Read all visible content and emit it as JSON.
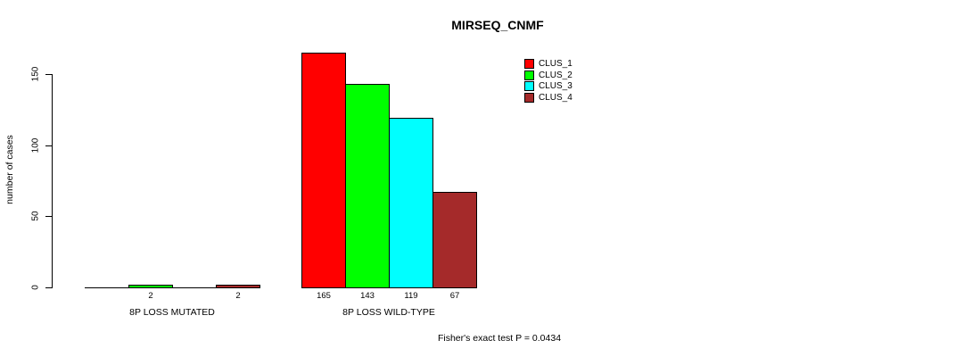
{
  "title": "MIRSEQ_CNMF",
  "annotation": "Fisher's exact test P = 0.0434",
  "y_axis": {
    "label": "number of cases",
    "tick_labels": [
      "0",
      "50",
      "100",
      "150"
    ]
  },
  "legend": {
    "items": [
      {
        "label": "CLUS_1",
        "color": "#FF0000"
      },
      {
        "label": "CLUS_2",
        "color": "#00FF00"
      },
      {
        "label": "CLUS_3",
        "color": "#00FFFF"
      },
      {
        "label": "CLUS_4",
        "color": "#A52A2A"
      }
    ]
  },
  "chart_data": {
    "type": "bar",
    "title": "MIRSEQ_CNMF",
    "ylabel": "number of cases",
    "xlabel": "",
    "ylim": [
      0,
      150
    ],
    "yticks": [
      0,
      50,
      100,
      150
    ],
    "grid": false,
    "legend_position": "top-right",
    "categories": [
      "8P LOSS MUTATED",
      "8P LOSS WILD-TYPE"
    ],
    "series": [
      {
        "name": "CLUS_1",
        "color": "#FF0000",
        "values": [
          0,
          165
        ]
      },
      {
        "name": "CLUS_2",
        "color": "#00FF00",
        "values": [
          2,
          143
        ]
      },
      {
        "name": "CLUS_3",
        "color": "#00FFFF",
        "values": [
          0,
          119
        ]
      },
      {
        "name": "CLUS_4",
        "color": "#A52A2A",
        "values": [
          2,
          67
        ]
      }
    ],
    "bar_value_labels": "shown under each bar only when value > 0",
    "annotation": "Fisher's exact test P = 0.0434"
  }
}
